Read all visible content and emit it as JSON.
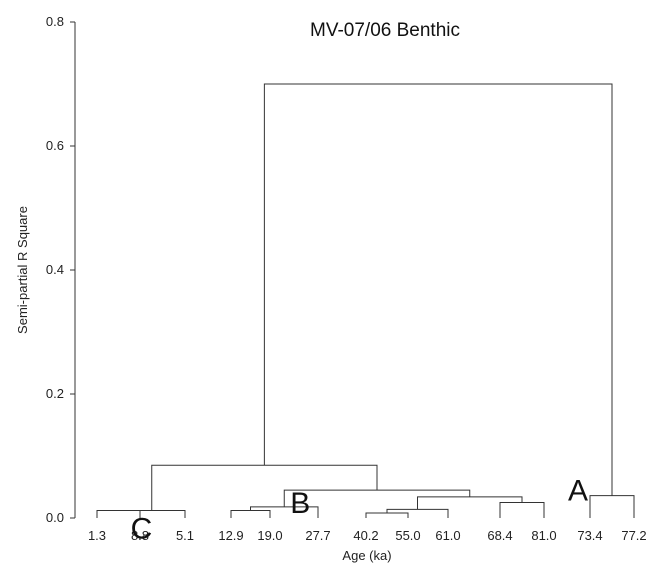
{
  "chart_data": {
    "type": "dendrogram",
    "title": "MV-07/06 Benthic",
    "xlabel": "Age (ka)",
    "ylabel": "Semi-partial R Square",
    "ylim": [
      0,
      0.8
    ],
    "yticks": [
      "0.0",
      "0.2",
      "0.4",
      "0.6",
      "0.8"
    ],
    "leaves": [
      "1.3",
      "8.8",
      "5.1",
      "12.9",
      "19.0",
      "27.7",
      "40.2",
      "55.0",
      "61.0",
      "68.4",
      "81.0",
      "73.4",
      "77.2"
    ],
    "merges": [
      {
        "left": "leaf:0",
        "right": "leaf:1",
        "height": 0.012
      },
      {
        "left": "node:0",
        "right": "leaf:2",
        "height": 0.012
      },
      {
        "left": "leaf:3",
        "right": "leaf:4",
        "height": 0.012
      },
      {
        "left": "node:2",
        "right": "leaf:5",
        "height": 0.018
      },
      {
        "left": "leaf:6",
        "right": "leaf:7",
        "height": 0.008
      },
      {
        "left": "node:4",
        "right": "leaf:8",
        "height": 0.014
      },
      {
        "left": "leaf:9",
        "right": "leaf:10",
        "height": 0.025
      },
      {
        "left": "node:5",
        "right": "node:6",
        "height": 0.034
      },
      {
        "left": "node:3",
        "right": "node:7",
        "height": 0.045
      },
      {
        "left": "node:1",
        "right": "node:8",
        "height": 0.085
      },
      {
        "left": "leaf:11",
        "right": "leaf:12",
        "height": 0.036
      },
      {
        "left": "node:9",
        "right": "node:10",
        "height": 0.7
      }
    ],
    "cluster_labels": [
      {
        "text": "C",
        "node": "node:1"
      },
      {
        "text": "B",
        "node": "node:8"
      },
      {
        "text": "A",
        "node": "node:10"
      }
    ]
  }
}
